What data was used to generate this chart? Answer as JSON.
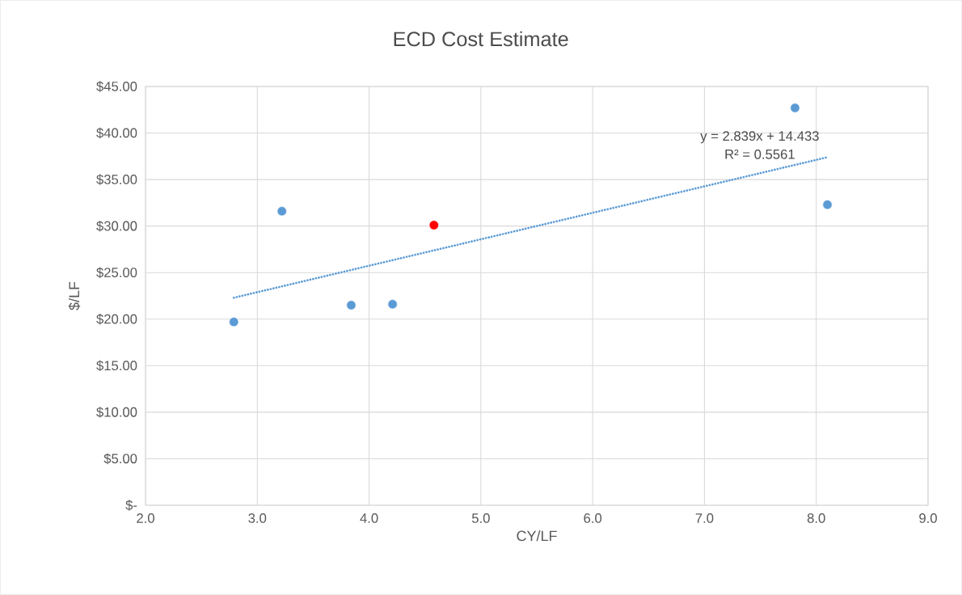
{
  "chart_data": {
    "type": "scatter",
    "title": "ECD Cost Estimate",
    "xlabel": "CY/LF",
    "ylabel": "$/LF",
    "xlim": [
      2,
      9
    ],
    "ylim": [
      0,
      45
    ],
    "xticks": [
      {
        "value": 2,
        "label": "2.0"
      },
      {
        "value": 3,
        "label": "3.0"
      },
      {
        "value": 4,
        "label": "4.0"
      },
      {
        "value": 5,
        "label": "5.0"
      },
      {
        "value": 6,
        "label": "6.0"
      },
      {
        "value": 7,
        "label": "7.0"
      },
      {
        "value": 8,
        "label": "8.0"
      },
      {
        "value": 9,
        "label": "9.0"
      }
    ],
    "yticks": [
      {
        "value": 0,
        "label": "$-"
      },
      {
        "value": 5,
        "label": "$5.00"
      },
      {
        "value": 10,
        "label": "$10.00"
      },
      {
        "value": 15,
        "label": "$15.00"
      },
      {
        "value": 20,
        "label": "$20.00"
      },
      {
        "value": 25,
        "label": "$25.00"
      },
      {
        "value": 30,
        "label": "$30.00"
      },
      {
        "value": 35,
        "label": "$35.00"
      },
      {
        "value": 40,
        "label": "$40.00"
      },
      {
        "value": 45,
        "label": "$45.00"
      }
    ],
    "grid": true,
    "series": [
      {
        "color": "#5b9bd5",
        "marker": "circle",
        "x": [
          2.79,
          3.22,
          3.84,
          4.21,
          7.81,
          8.1
        ],
        "values": [
          19.7,
          31.6,
          21.5,
          21.6,
          42.7,
          32.3
        ]
      },
      {
        "color": "#ff0000",
        "marker": "circle",
        "x": [
          4.58
        ],
        "values": [
          30.1
        ]
      },
      {
        "type": "line",
        "color": "#5b9bd5",
        "line_style": "dotted",
        "marker": "none",
        "x": [
          2.79,
          8.1
        ],
        "values": [
          22.3,
          37.4
        ]
      }
    ],
    "annotations": [
      "y = 2.839x + 14.433",
      "R² = 0.5561"
    ]
  }
}
